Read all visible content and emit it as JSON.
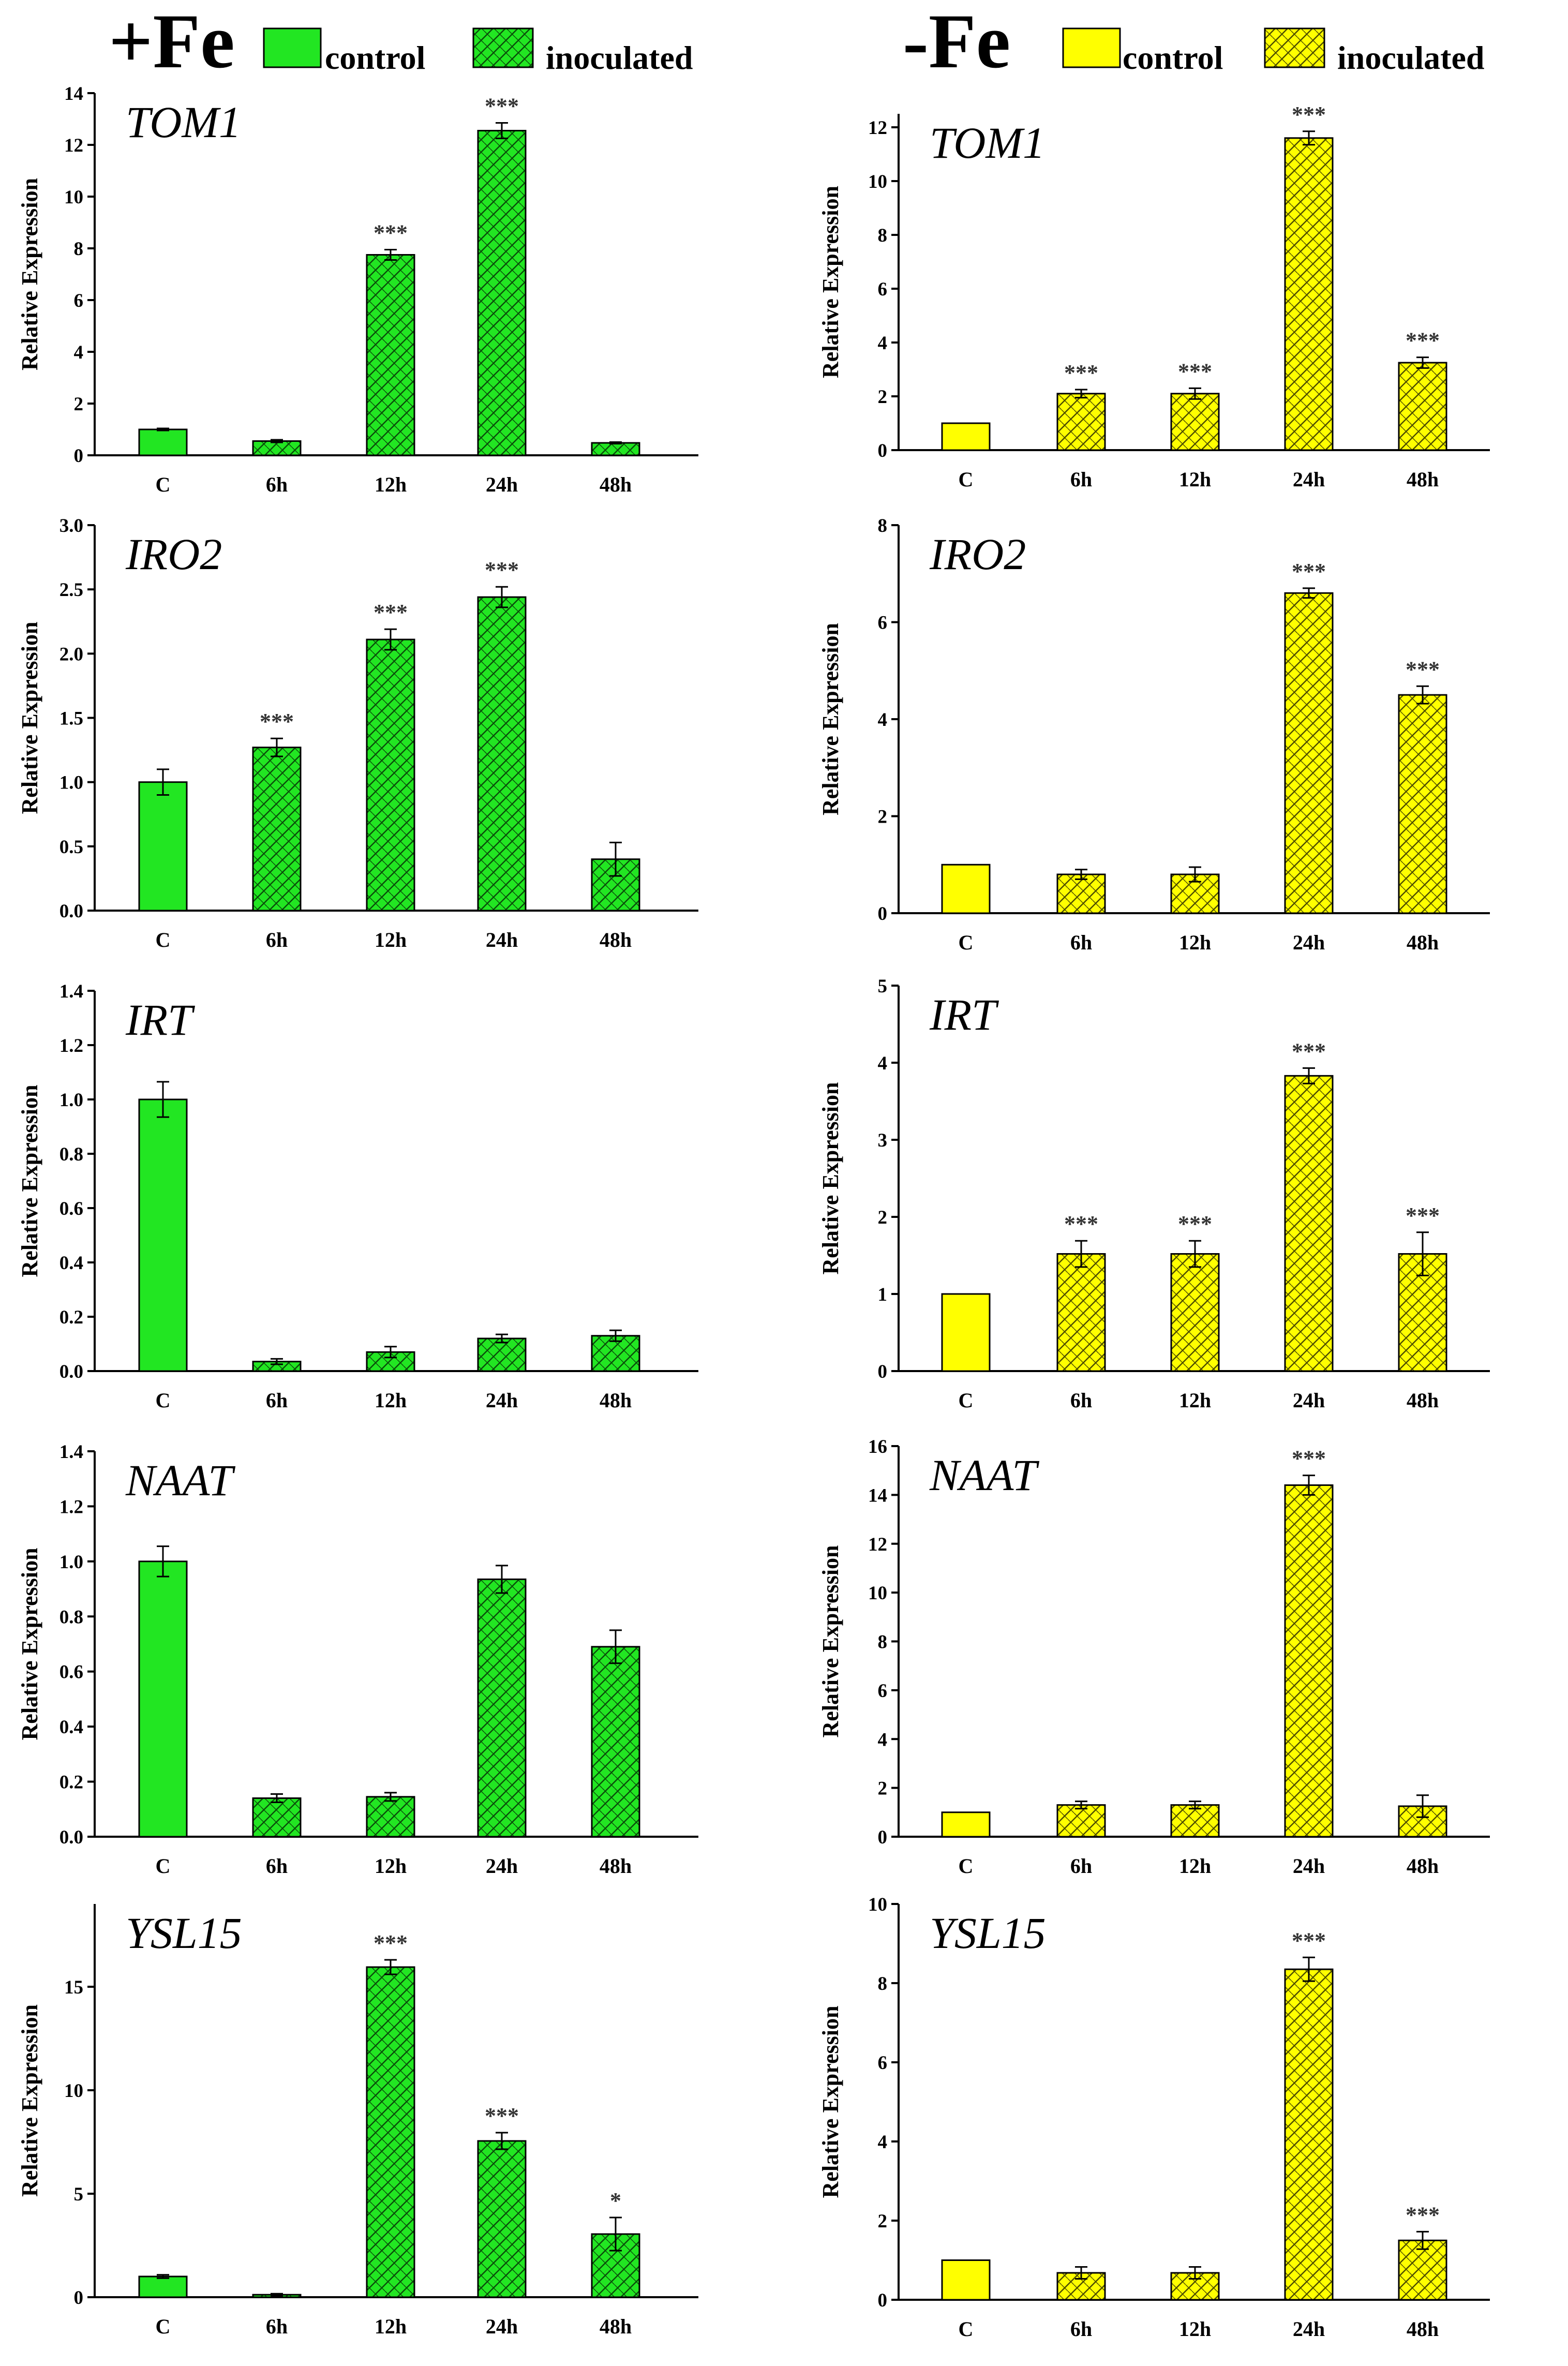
{
  "legend": {
    "plus_fe": {
      "title": "+Fe",
      "control": "control",
      "inoculated": "inoculated",
      "color": "#22e622"
    },
    "minus_fe": {
      "title": "-Fe",
      "control": "control",
      "inoculated": "inoculated",
      "color": "#ffff00"
    }
  },
  "chart_data": [
    {
      "type": "bar",
      "panel": "+Fe",
      "gene": "TOM1",
      "ylabel": "Relative Expression",
      "categories": [
        "C",
        "6h",
        "12h",
        "24h",
        "48h"
      ],
      "values": [
        1.0,
        0.55,
        7.75,
        12.55,
        0.48
      ],
      "errors": [
        0.04,
        0.05,
        0.2,
        0.3,
        0.03
      ],
      "significance": [
        "",
        "",
        "***",
        "***",
        ""
      ],
      "ylim": [
        0,
        14
      ],
      "yticks": [
        "0",
        "2",
        "4",
        "6",
        "8",
        "10",
        "12",
        "14"
      ]
    },
    {
      "type": "bar",
      "panel": "-Fe",
      "gene": "TOM1",
      "ylabel": "Relative Expression",
      "categories": [
        "C",
        "6h",
        "12h",
        "24h",
        "48h"
      ],
      "values": [
        1.0,
        2.1,
        2.1,
        11.6,
        3.25
      ],
      "errors": [
        0,
        0.15,
        0.2,
        0.25,
        0.2
      ],
      "significance": [
        "",
        "***",
        "***",
        "***",
        "***"
      ],
      "ylim": [
        0,
        12.5
      ],
      "yticks": [
        "0",
        "2",
        "4",
        "6",
        "8",
        "10",
        "12"
      ]
    },
    {
      "type": "bar",
      "panel": "+Fe",
      "gene": "IRO2",
      "ylabel": "Relative Expression",
      "categories": [
        "C",
        "6h",
        "12h",
        "24h",
        "48h"
      ],
      "values": [
        1.0,
        1.27,
        2.11,
        2.44,
        0.4
      ],
      "errors": [
        0.1,
        0.07,
        0.08,
        0.08,
        0.13
      ],
      "significance": [
        "",
        "***",
        "***",
        "***",
        ""
      ],
      "ylim": [
        0,
        3.0
      ],
      "yticks": [
        "0.0",
        "0.5",
        "1.0",
        "1.5",
        "2.0",
        "2.5",
        "3.0"
      ]
    },
    {
      "type": "bar",
      "panel": "-Fe",
      "gene": "IRO2",
      "ylabel": "Relative Expression",
      "categories": [
        "C",
        "6h",
        "12h",
        "24h",
        "48h"
      ],
      "values": [
        1.0,
        0.8,
        0.8,
        6.6,
        4.5
      ],
      "errors": [
        0,
        0.1,
        0.15,
        0.1,
        0.18
      ],
      "significance": [
        "",
        "",
        "",
        "***",
        "***"
      ],
      "ylim": [
        0,
        8
      ],
      "yticks": [
        "0",
        "2",
        "4",
        "6",
        "8"
      ]
    },
    {
      "type": "bar",
      "panel": "+Fe",
      "gene": "IRT",
      "ylabel": "Relative Expression",
      "categories": [
        "C",
        "6h",
        "12h",
        "24h",
        "48h"
      ],
      "values": [
        1.0,
        0.035,
        0.07,
        0.12,
        0.13
      ],
      "errors": [
        0.065,
        0.01,
        0.02,
        0.015,
        0.02
      ],
      "significance": [
        "",
        "",
        "",
        "",
        ""
      ],
      "ylim": [
        0,
        1.4
      ],
      "yticks": [
        "0.0",
        "0.2",
        "0.4",
        "0.6",
        "0.8",
        "1.0",
        "1.2",
        "1.4"
      ]
    },
    {
      "type": "bar",
      "panel": "-Fe",
      "gene": "IRT",
      "ylabel": "Relative Expression",
      "categories": [
        "C",
        "6h",
        "12h",
        "24h",
        "48h"
      ],
      "values": [
        1.0,
        1.52,
        1.52,
        3.83,
        1.52
      ],
      "errors": [
        0,
        0.17,
        0.17,
        0.1,
        0.28
      ],
      "significance": [
        "",
        "***",
        "***",
        "***",
        "***"
      ],
      "ylim": [
        0,
        5
      ],
      "yticks": [
        "0",
        "1",
        "2",
        "3",
        "4",
        "5"
      ]
    },
    {
      "type": "bar",
      "panel": "+Fe",
      "gene": "NAAT",
      "ylabel": "Relative Expression",
      "categories": [
        "C",
        "6h",
        "12h",
        "24h",
        "48h"
      ],
      "values": [
        1.0,
        0.14,
        0.145,
        0.935,
        0.69
      ],
      "errors": [
        0.055,
        0.015,
        0.015,
        0.05,
        0.06
      ],
      "significance": [
        "",
        "",
        "",
        "",
        ""
      ],
      "ylim": [
        0,
        1.4
      ],
      "yticks": [
        "0.0",
        "0.2",
        "0.4",
        "0.6",
        "0.8",
        "1.0",
        "1.2",
        "1.4"
      ]
    },
    {
      "type": "bar",
      "panel": "-Fe",
      "gene": "NAAT",
      "ylabel": "Relative Expression",
      "categories": [
        "C",
        "6h",
        "12h",
        "24h",
        "48h"
      ],
      "values": [
        1.0,
        1.3,
        1.3,
        14.4,
        1.25
      ],
      "errors": [
        0,
        0.15,
        0.15,
        0.4,
        0.45
      ],
      "significance": [
        "",
        "",
        "",
        "***",
        ""
      ],
      "ylim": [
        0,
        16
      ],
      "yticks": [
        "0",
        "2",
        "4",
        "6",
        "8",
        "10",
        "12",
        "14",
        "16"
      ]
    },
    {
      "type": "bar",
      "panel": "+Fe",
      "gene": "YSL15",
      "ylabel": "Relative Expression",
      "categories": [
        "C",
        "6h",
        "12h",
        "24h",
        "48h"
      ],
      "values": [
        1.0,
        0.12,
        15.95,
        7.55,
        3.05
      ],
      "errors": [
        0.08,
        0.05,
        0.35,
        0.4,
        0.8
      ],
      "significance": [
        "",
        "",
        "***",
        "***",
        "*"
      ],
      "ylim": [
        0,
        19
      ],
      "yticks": [
        "0",
        "5",
        "10",
        "15"
      ]
    },
    {
      "type": "bar",
      "panel": "-Fe",
      "gene": "YSL15",
      "ylabel": "Relative Expression",
      "categories": [
        "C",
        "6h",
        "12h",
        "24h",
        "48h"
      ],
      "values": [
        1.0,
        0.68,
        0.68,
        8.35,
        1.5
      ],
      "errors": [
        0,
        0.15,
        0.15,
        0.3,
        0.22
      ],
      "significance": [
        "",
        "",
        "",
        "***",
        "***"
      ],
      "ylim": [
        0,
        10
      ],
      "yticks": [
        "0",
        "2",
        "4",
        "6",
        "8",
        "10"
      ]
    }
  ]
}
